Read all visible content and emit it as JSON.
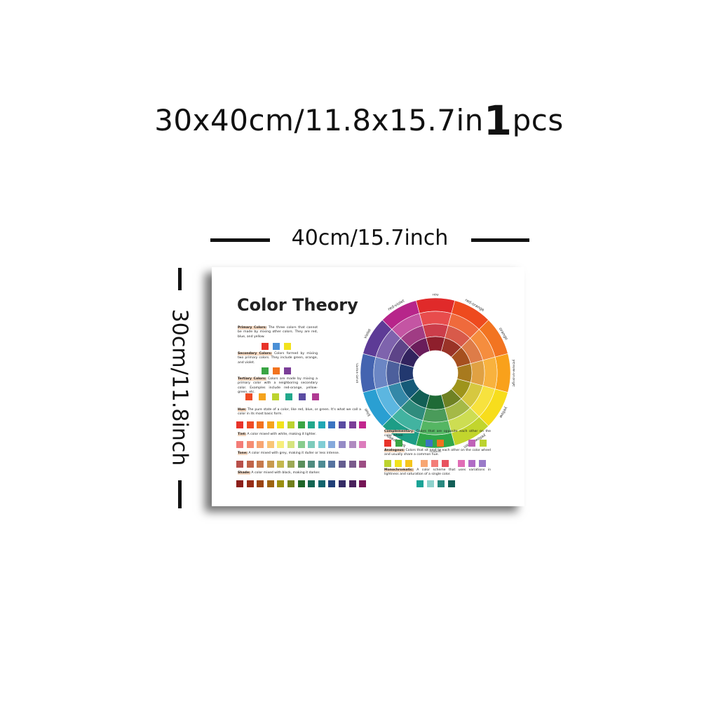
{
  "headline": {
    "size": "30x40cm/11.8x15.7in",
    "qty": "1",
    "unit": "pcs"
  },
  "dims": {
    "width_label": "40cm/15.7inch",
    "height_label": "30cm/11.8inch"
  },
  "poster": {
    "title": "Color Theory",
    "primary": {
      "term": "Primary Colors:",
      "text": " The three colors that cannot be made by mixing other colors. They are red, blue, and yellow.",
      "swatches": [
        "#e8332a",
        "#4a8fd6",
        "#f2e21c"
      ]
    },
    "secondary": {
      "term": "Secondary Colors:",
      "text": " Colors formed by mixing two primary colors. They include green, orange, and violet.",
      "swatches": [
        "#3aa544",
        "#f2731e",
        "#7b3e98"
      ]
    },
    "tertiary": {
      "term": "Tertiary Colors:",
      "text": " Colors are made by mixing a primary color with a neighboring secondary color. Examples include red-orange, yellow-green, etc.",
      "swatches": [
        "#ef4c24",
        "#f5a31c",
        "#bcd32f",
        "#22a88c",
        "#5b4ca2",
        "#b03a93"
      ]
    },
    "hue": {
      "term": "Hue:",
      "text": " The pure state of a color, like red, blue, or green. It's what we call a color in its most basic form."
    },
    "tint": {
      "term": "Tint:",
      "text": " A color mixed with white, making it lighter."
    },
    "tone": {
      "term": "Tone:",
      "text": " A color mixed with grey, making it duller or less intense."
    },
    "shade": {
      "term": "Shade:",
      "text": " A color mixed with black, making it darker."
    },
    "rows": {
      "hue": [
        "#e8332a",
        "#ef4c24",
        "#f2731e",
        "#f5a31c",
        "#f2e21c",
        "#bcd32f",
        "#3aa544",
        "#22a88c",
        "#20a7b5",
        "#3b74c2",
        "#5b4ca2",
        "#7b3e98",
        "#c2268e"
      ],
      "tint": [
        "#f37d78",
        "#f58d72",
        "#f7a673",
        "#f9c577",
        "#f7ee7d",
        "#d6e47e",
        "#87cc8d",
        "#7ccbbb",
        "#80cdd5",
        "#85a9dc",
        "#958bc6",
        "#b08bc0",
        "#dc7cbc"
      ],
      "tone": [
        "#b8504a",
        "#c06448",
        "#c67a4c",
        "#c89a4e",
        "#c4b84e",
        "#9ca955",
        "#5a8f5c",
        "#4f8c80",
        "#4e8b94",
        "#5673a0",
        "#655d90",
        "#7a5a8c",
        "#9c4e84"
      ],
      "shade": [
        "#8c1f1a",
        "#972d16",
        "#9a4411",
        "#9d6410",
        "#9a8f10",
        "#71801c",
        "#1f6628",
        "#136552",
        "#12646d",
        "#213f78",
        "#362c66",
        "#4a225c",
        "#751656"
      ]
    },
    "wheel_labels": [
      "red",
      "red-orange",
      "orange",
      "yellow-orange",
      "yellow",
      "yellow-green",
      "green",
      "blue-green",
      "blue",
      "blue-violet",
      "violet",
      "red-violet"
    ],
    "complementary": {
      "term": "Complementary:",
      "text": " Colors that are opposite each other on the color wheel.",
      "swatches": [
        [
          "#e8332a",
          "#3aa544"
        ],
        [
          "#3b74c2",
          "#f2731e"
        ],
        [
          "#c062b8",
          "#bcd32f"
        ]
      ]
    },
    "analogous": {
      "term": "Analogous:",
      "text": " Colors that sit next to each other on the color wheel and usually share a common hue.",
      "swatches": [
        [
          "#bcd32f",
          "#f2e21c",
          "#f5c51c"
        ],
        [
          "#f7a673",
          "#f37d78",
          "#e8535f"
        ],
        [
          "#e06db6",
          "#b06bc6",
          "#9a7ac8"
        ]
      ]
    },
    "monochromatic": {
      "term": "Monochromatic:",
      "text": " A color scheme that uses variations in lightness and saturation of a single color.",
      "swatches": [
        "#1aa396",
        "#8ed2cc",
        "#2a8a80",
        "#135f57"
      ]
    }
  }
}
